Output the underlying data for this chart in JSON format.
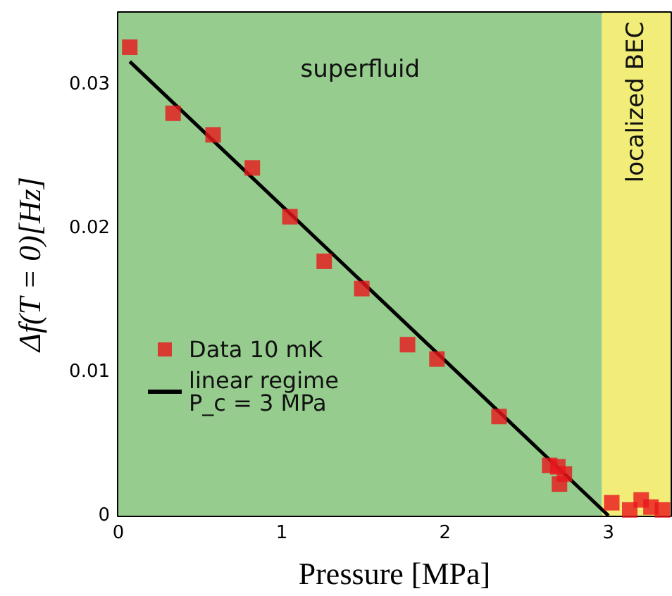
{
  "chart_data": {
    "type": "scatter",
    "xlabel": "Pressure [MPa]",
    "ylabel": "Δf(T = 0)[Hz]",
    "xlim": [
      0,
      3.38
    ],
    "ylim": [
      0,
      0.035
    ],
    "xticks": [
      0,
      {
        "value": 0.5,
        "label": null
      },
      1,
      {
        "value": 1.5,
        "label": null
      },
      2,
      {
        "value": 2.5,
        "label": null
      },
      3
    ],
    "yticks": [
      0,
      {
        "value": 0.005,
        "label": null
      },
      0.01,
      {
        "value": 0.015,
        "label": null
      },
      0.02,
      {
        "value": 0.025,
        "label": null
      },
      0.03
    ],
    "grid": false,
    "legend": "left",
    "series": [
      {
        "name": "Data 10 mK",
        "type": "scatter",
        "marker": "square",
        "color": "#e8161b",
        "x": [
          0.07,
          0.335,
          0.58,
          0.82,
          1.05,
          1.26,
          1.49,
          1.77,
          1.95,
          2.33,
          2.64,
          2.69,
          2.73,
          2.7,
          3.02,
          3.13,
          3.2,
          3.26,
          3.33
        ],
        "values": [
          0.0326,
          0.028,
          0.0265,
          0.0242,
          0.0208,
          0.0177,
          0.0158,
          0.0119,
          0.0109,
          0.0069,
          0.0035,
          0.0034,
          0.0029,
          0.0022,
          0.0009,
          0.0004,
          0.0011,
          0.0006,
          0.0004
        ]
      },
      {
        "name": "linear regime\nP_c = 3 MPa",
        "type": "line",
        "marker": "none",
        "line_style": "solid",
        "color": "#000000",
        "x": [
          0.07,
          3
        ],
        "values": [
          0.0316,
          0
        ]
      }
    ],
    "bands": [
      {
        "axis": "x",
        "from": 0,
        "to": 2.96,
        "label": "superfluid",
        "color": "#96cd8e"
      },
      {
        "axis": "x",
        "from": 2.96,
        "to": 3.38,
        "label": "localized BEC",
        "color": "#f2ec78"
      }
    ]
  }
}
